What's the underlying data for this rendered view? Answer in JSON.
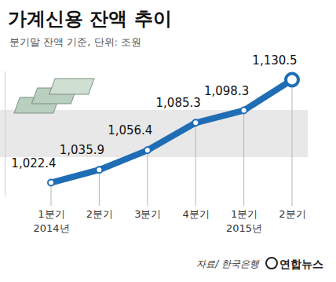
{
  "chart_data": {
    "type": "line",
    "title": "가계신용 잔액 추이",
    "subtitle": "분기말 잔액 기준, 단위: 조원",
    "categories": [
      "1분기\n2014년",
      "2분기",
      "3분기",
      "4분기",
      "1분기\n2015년",
      "2분기"
    ],
    "values": [
      1022.4,
      1035.9,
      1056.4,
      1085.3,
      1098.3,
      1130.5
    ],
    "value_labels": [
      "1,022.4",
      "1,035.9",
      "1,056.4",
      "1,085.3",
      "1,098.3",
      "1,130.5"
    ],
    "color": "#1f6db5",
    "ylim": [
      1008,
      1140
    ],
    "data_labels": true,
    "tick_labels": "x",
    "marker": "circle",
    "annotations": [
      "자료/ 한국은행",
      "연합뉴스"
    ]
  }
}
